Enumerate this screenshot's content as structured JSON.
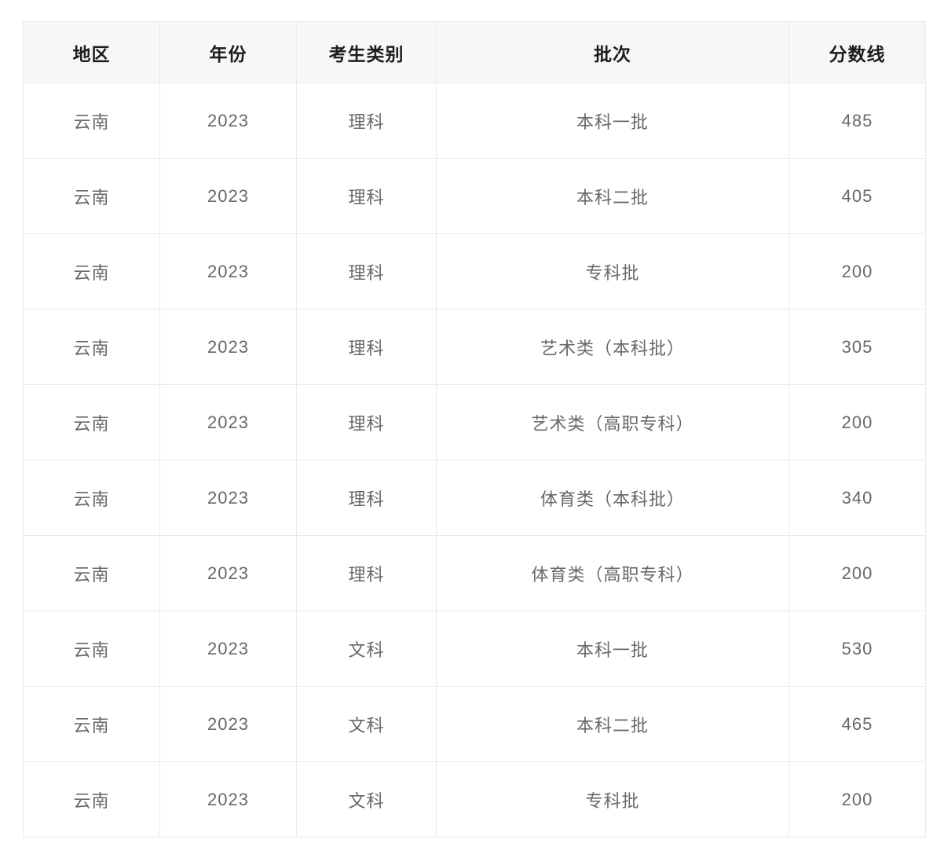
{
  "table": {
    "columns": [
      {
        "key": "region",
        "label": "地区"
      },
      {
        "key": "year",
        "label": "年份"
      },
      {
        "key": "category",
        "label": "考生类别"
      },
      {
        "key": "batch",
        "label": "批次"
      },
      {
        "key": "score",
        "label": "分数线"
      }
    ],
    "rows": [
      [
        "云南",
        "2023",
        "理科",
        "本科一批",
        "485"
      ],
      [
        "云南",
        "2023",
        "理科",
        "本科二批",
        "405"
      ],
      [
        "云南",
        "2023",
        "理科",
        "专科批",
        "200"
      ],
      [
        "云南",
        "2023",
        "理科",
        "艺术类（本科批）",
        "305"
      ],
      [
        "云南",
        "2023",
        "理科",
        "艺术类（高职专科）",
        "200"
      ],
      [
        "云南",
        "2023",
        "理科",
        "体育类（本科批）",
        "340"
      ],
      [
        "云南",
        "2023",
        "理科",
        "体育类（高职专科）",
        "200"
      ],
      [
        "云南",
        "2023",
        "文科",
        "本科一批",
        "530"
      ],
      [
        "云南",
        "2023",
        "文科",
        "本科二批",
        "465"
      ],
      [
        "云南",
        "2023",
        "文科",
        "专科批",
        "200"
      ]
    ]
  },
  "colors": {
    "header_bg": "#f7f7f8",
    "border": "#e9e9e9",
    "header_text": "#1d1d1d",
    "cell_text": "#686868",
    "page_bg": "#ffffff"
  },
  "chart_data": {
    "type": "table",
    "title": "",
    "columns": [
      "地区",
      "年份",
      "考生类别",
      "批次",
      "分数线"
    ],
    "rows": [
      [
        "云南",
        "2023",
        "理科",
        "本科一批",
        485
      ],
      [
        "云南",
        "2023",
        "理科",
        "本科二批",
        405
      ],
      [
        "云南",
        "2023",
        "理科",
        "专科批",
        200
      ],
      [
        "云南",
        "2023",
        "理科",
        "艺术类（本科批）",
        305
      ],
      [
        "云南",
        "2023",
        "理科",
        "艺术类（高职专科）",
        200
      ],
      [
        "云南",
        "2023",
        "理科",
        "体育类（本科批）",
        340
      ],
      [
        "云南",
        "2023",
        "理科",
        "体育类（高职专科）",
        200
      ],
      [
        "云南",
        "2023",
        "文科",
        "本科一批",
        530
      ],
      [
        "云南",
        "2023",
        "文科",
        "本科二批",
        465
      ],
      [
        "云南",
        "2023",
        "文科",
        "专科批",
        200
      ]
    ]
  }
}
